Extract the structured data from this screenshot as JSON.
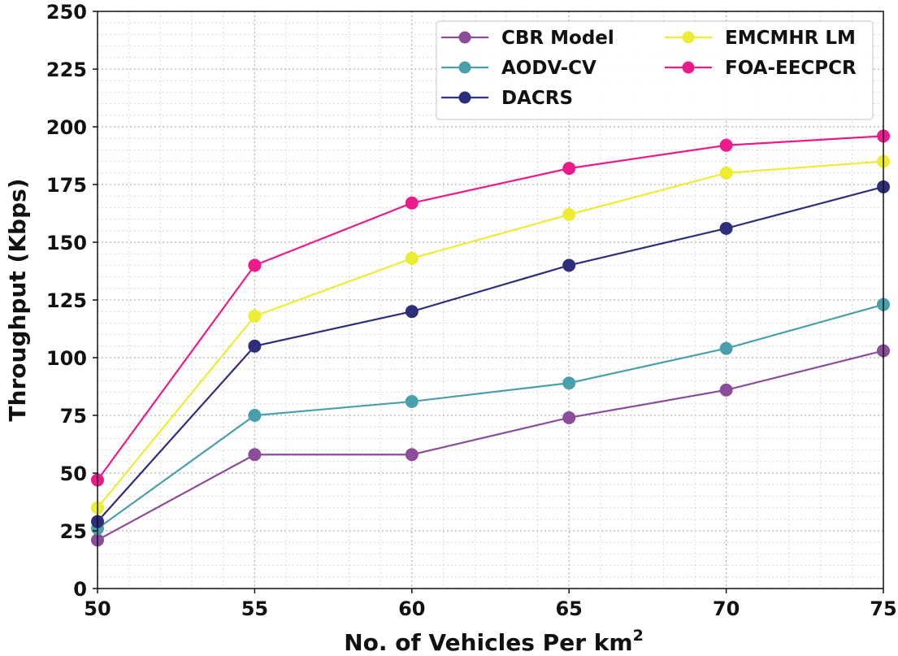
{
  "chart_data": {
    "type": "line",
    "title": "",
    "xlabel": "No. of Vehicles Per km",
    "xlabel_superscript": "2",
    "ylabel": "Throughput (Kbps)",
    "x": [
      50,
      55,
      60,
      65,
      70,
      75
    ],
    "xlim": [
      50,
      75
    ],
    "ylim": [
      0,
      250
    ],
    "xticks": [
      "50",
      "55",
      "60",
      "65",
      "70",
      "75"
    ],
    "yticks": [
      "0",
      "25",
      "50",
      "75",
      "100",
      "125",
      "150",
      "175",
      "200",
      "225",
      "250"
    ],
    "grid": true,
    "legend_position": "top-right",
    "series": [
      {
        "name": "CBR Model",
        "color": "#8b4c9b",
        "values": [
          21,
          58,
          58,
          74,
          86,
          103
        ]
      },
      {
        "name": "AODV-CV",
        "color": "#4a9fad",
        "values": [
          26,
          75,
          81,
          89,
          104,
          123
        ]
      },
      {
        "name": "DACRS",
        "color": "#2e2f7a",
        "values": [
          29,
          105,
          120,
          140,
          156,
          174
        ]
      },
      {
        "name": "EMCMHR LM",
        "color": "#eced32",
        "values": [
          35,
          118,
          143,
          162,
          180,
          185
        ]
      },
      {
        "name": "FOA-EECPCR",
        "color": "#ec1b8c",
        "values": [
          47,
          140,
          167,
          182,
          192,
          196
        ]
      }
    ]
  }
}
